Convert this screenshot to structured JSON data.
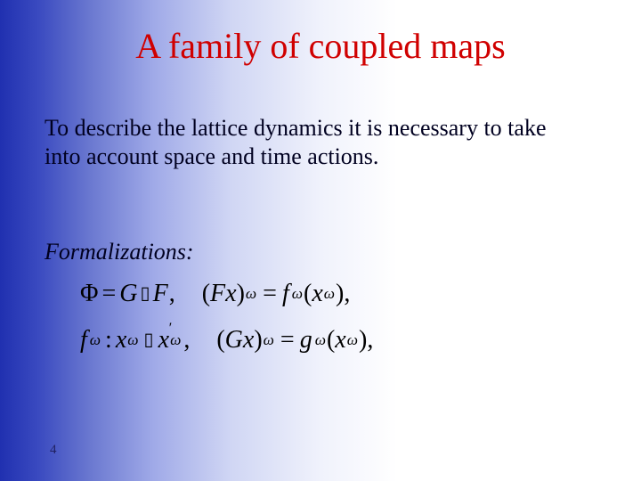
{
  "slide": {
    "background": {
      "gradient_stops": [
        "#2030b0",
        "#3a4ac0",
        "#6a78d0",
        "#a0aae8",
        "#d0d6f4",
        "#f0f2fc",
        "#ffffff"
      ],
      "direction": "left-to-right"
    },
    "page_number": "4"
  },
  "title": {
    "text": "A family of coupled  maps",
    "color": "#d00000",
    "fontsize_pt": 40,
    "font_family": "Times New Roman"
  },
  "body": {
    "text": "To describe the lattice dynamics it is necessary to take into account space and time actions.",
    "fontsize_pt": 26,
    "color": "#000020"
  },
  "subhead": {
    "text": "Formalizations:",
    "italic": true,
    "fontsize_pt": 26
  },
  "formulas": {
    "fontsize_pt": 28,
    "color": "#000000",
    "row1": {
      "left": {
        "Phi": "Φ",
        "eq": "=",
        "G": "G",
        "compose_glyph": "▯",
        "F": "F",
        "comma": ","
      },
      "right": {
        "lparen": "(",
        "Fx": "Fx",
        "rparen": ")",
        "sub_omega": "ω",
        "eq": "=",
        "f": "f",
        "f_sub": "ω",
        "lparen2": "(",
        "x": "x",
        "x_sub": "ω",
        "rparen2": ")",
        "comma": ","
      }
    },
    "row2": {
      "left": {
        "f": "f",
        "f_sub": "ω",
        "colon": ":",
        "x": "x",
        "x_sub": "ω",
        "maps_glyph": "▯",
        "xprime": "x",
        "xprime_sup": "′",
        "xprime_sub": "ω",
        "comma": ","
      },
      "right": {
        "lparen": "(",
        "Gx": "Gx",
        "rparen": ")",
        "sub_omega": "ω",
        "eq": "=",
        "g": "g",
        "g_sub": "ω",
        "lparen2": "(",
        "x": "x",
        "x_sub": "ω",
        "rparen2": ")",
        "comma": ","
      }
    }
  }
}
